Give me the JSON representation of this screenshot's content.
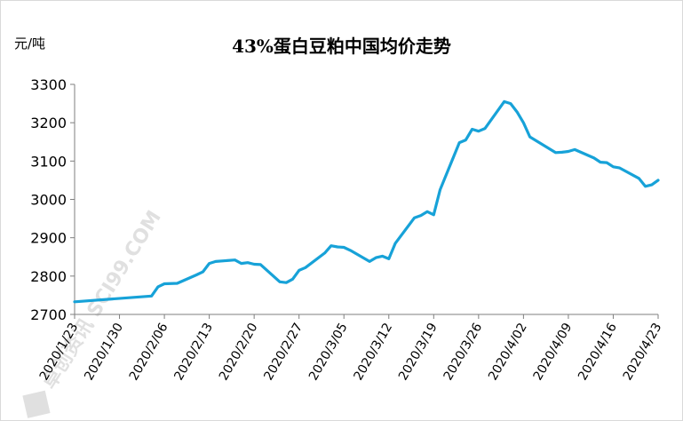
{
  "chart_data": {
    "type": "line",
    "title": "43%蛋白豆粕中国均价走势",
    "ylabel": "元/吨",
    "xlabel": "",
    "ylim": [
      2700,
      3300
    ],
    "yticks": [
      2700,
      2800,
      2900,
      3000,
      3100,
      3200,
      3300
    ],
    "xticks": [
      "2020/1/23",
      "2020/1/30",
      "2020/2/06",
      "2020/2/13",
      "2020/2/20",
      "2020/2/27",
      "2020/3/05",
      "2020/3/12",
      "2020/3/19",
      "2020/3/26",
      "2020/4/02",
      "2020/4/09",
      "2020/4/16",
      "2020/4/23"
    ],
    "x_start": "2020/1/23",
    "x_end": "2020/4/23",
    "grid": false,
    "legend": "none",
    "line_color": "#17a2d8",
    "series": [
      {
        "x": [
          "2020/1/23",
          "2020/2/04",
          "2020/2/05",
          "2020/2/06",
          "2020/2/08",
          "2020/2/11",
          "2020/2/12",
          "2020/2/13",
          "2020/2/14",
          "2020/2/17",
          "2020/2/18",
          "2020/2/19",
          "2020/2/20",
          "2020/2/21",
          "2020/2/24",
          "2020/2/25",
          "2020/2/26",
          "2020/2/27",
          "2020/2/28",
          "2020/3/02",
          "2020/3/03",
          "2020/3/04",
          "2020/3/05",
          "2020/3/06",
          "2020/3/09",
          "2020/3/10",
          "2020/3/11",
          "2020/3/12",
          "2020/3/13",
          "2020/3/16",
          "2020/3/17",
          "2020/3/18",
          "2020/3/19",
          "2020/3/20",
          "2020/3/23",
          "2020/3/24",
          "2020/3/25",
          "2020/3/26",
          "2020/3/27",
          "2020/3/30",
          "2020/3/31",
          "2020/4/01",
          "2020/4/02",
          "2020/4/03",
          "2020/4/07",
          "2020/4/08",
          "2020/4/09",
          "2020/4/10",
          "2020/4/13",
          "2020/4/14",
          "2020/4/15",
          "2020/4/16",
          "2020/4/17",
          "2020/4/20",
          "2020/4/21",
          "2020/4/22",
          "2020/4/23"
        ],
        "values": [
          2733,
          2748,
          2772,
          2780,
          2781,
          2803,
          2811,
          2833,
          2838,
          2842,
          2833,
          2835,
          2831,
          2830,
          2785,
          2783,
          2792,
          2815,
          2822,
          2860,
          2879,
          2876,
          2875,
          2867,
          2838,
          2848,
          2852,
          2845,
          2885,
          2952,
          2958,
          2968,
          2960,
          3025,
          3148,
          3155,
          3183,
          3178,
          3185,
          3255,
          3250,
          3228,
          3200,
          3163,
          3122,
          3123,
          3125,
          3130,
          3108,
          3097,
          3096,
          3085,
          3082,
          3055,
          3034,
          3038,
          3050
        ]
      }
    ]
  },
  "watermark": "卓创资讯 SCI99.COM"
}
